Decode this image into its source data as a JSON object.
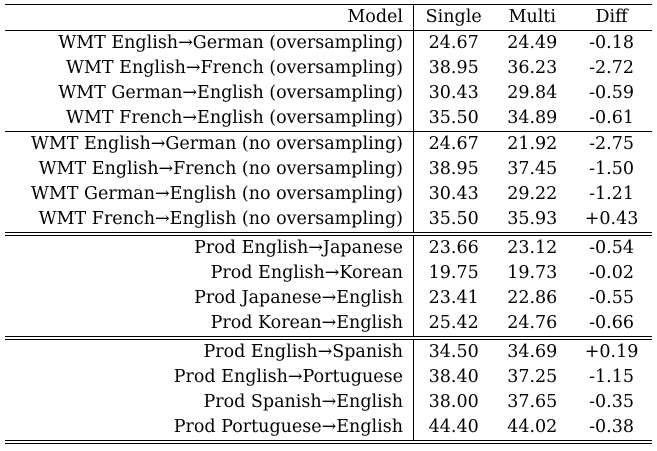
{
  "table": {
    "headers": {
      "model": "Model",
      "single": "Single",
      "multi": "Multi",
      "diff": "Diff"
    },
    "groups": [
      {
        "rows": [
          {
            "model": "WMT English→German (oversampling)",
            "single": "24.67",
            "multi": "24.49",
            "diff": "-0.18"
          },
          {
            "model": "WMT English→French (oversampling)",
            "single": "38.95",
            "multi": "36.23",
            "diff": "-2.72"
          },
          {
            "model": "WMT German→English (oversampling)",
            "single": "30.43",
            "multi": "29.84",
            "diff": "-0.59"
          },
          {
            "model": "WMT French→English (oversampling)",
            "single": "35.50",
            "multi": "34.89",
            "diff": "-0.61"
          }
        ]
      },
      {
        "rows": [
          {
            "model": "WMT English→German (no oversampling)",
            "single": "24.67",
            "multi": "21.92",
            "diff": "-2.75"
          },
          {
            "model": "WMT English→French (no oversampling)",
            "single": "38.95",
            "multi": "37.45",
            "diff": "-1.50"
          },
          {
            "model": "WMT German→English (no oversampling)",
            "single": "30.43",
            "multi": "29.22",
            "diff": "-1.21"
          },
          {
            "model": "WMT French→English (no oversampling)",
            "single": "35.50",
            "multi": "35.93",
            "diff": "+0.43"
          }
        ]
      },
      {
        "rows": [
          {
            "model": "Prod English→Japanese",
            "single": "23.66",
            "multi": "23.12",
            "diff": "-0.54"
          },
          {
            "model": "Prod English→Korean",
            "single": "19.75",
            "multi": "19.73",
            "diff": "-0.02"
          },
          {
            "model": "Prod Japanese→English",
            "single": "23.41",
            "multi": "22.86",
            "diff": "-0.55"
          },
          {
            "model": "Prod Korean→English",
            "single": "25.42",
            "multi": "24.76",
            "diff": "-0.66"
          }
        ]
      },
      {
        "rows": [
          {
            "model": "Prod English→Spanish",
            "single": "34.50",
            "multi": "34.69",
            "diff": "+0.19"
          },
          {
            "model": "Prod English→Portuguese",
            "single": "38.40",
            "multi": "37.25",
            "diff": "-1.15"
          },
          {
            "model": "Prod Spanish→English",
            "single": "38.00",
            "multi": "37.65",
            "diff": "-0.35"
          },
          {
            "model": "Prod Portuguese→English",
            "single": "44.40",
            "multi": "44.02",
            "diff": "-0.38"
          }
        ]
      }
    ]
  }
}
